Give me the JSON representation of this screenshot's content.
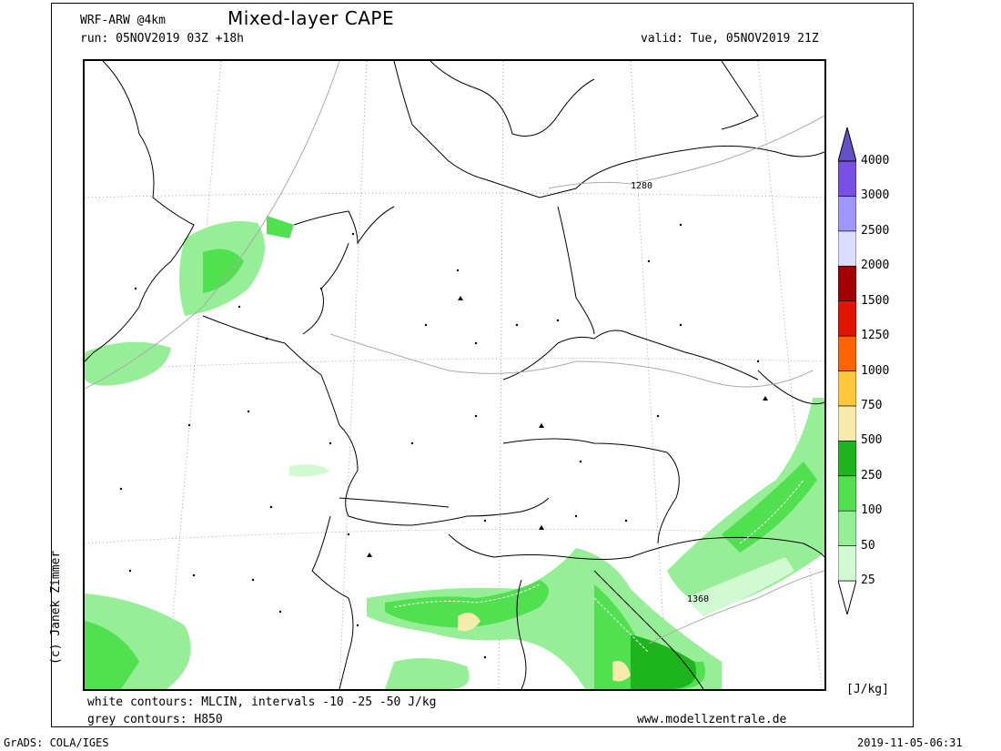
{
  "header": {
    "model": "WRF-ARW @4km",
    "title": "Mixed-layer CAPE",
    "run": "run: 05NOV2019 03Z +18h",
    "valid": "valid: Tue, 05NOV2019 21Z"
  },
  "footer": {
    "line1": "white contours: MLCIN, intervals -10 -25 -50 J/kg",
    "line2": "grey contours: H850",
    "website": "www.modellzentrale.de",
    "software": "GrADS: COLA/IGES",
    "timestamp": "2019-11-05-06:31"
  },
  "author": "(c) Janek Zimmer",
  "map": {
    "contour_labels": [
      "1280",
      "1360"
    ]
  },
  "legend": {
    "unit": "[J/kg]",
    "levels": [
      "25",
      "50",
      "100",
      "250",
      "500",
      "750",
      "1000",
      "1250",
      "1500",
      "2000",
      "2500",
      "3000",
      "4000"
    ],
    "colors": [
      "#d2fad2",
      "#96ee96",
      "#50e050",
      "#1eb41e",
      "#f5ebaa",
      "#ffc83c",
      "#ff6400",
      "#e11400",
      "#a50000",
      "#dcdcff",
      "#a096fa",
      "#7850e6",
      "#6450c8"
    ]
  }
}
